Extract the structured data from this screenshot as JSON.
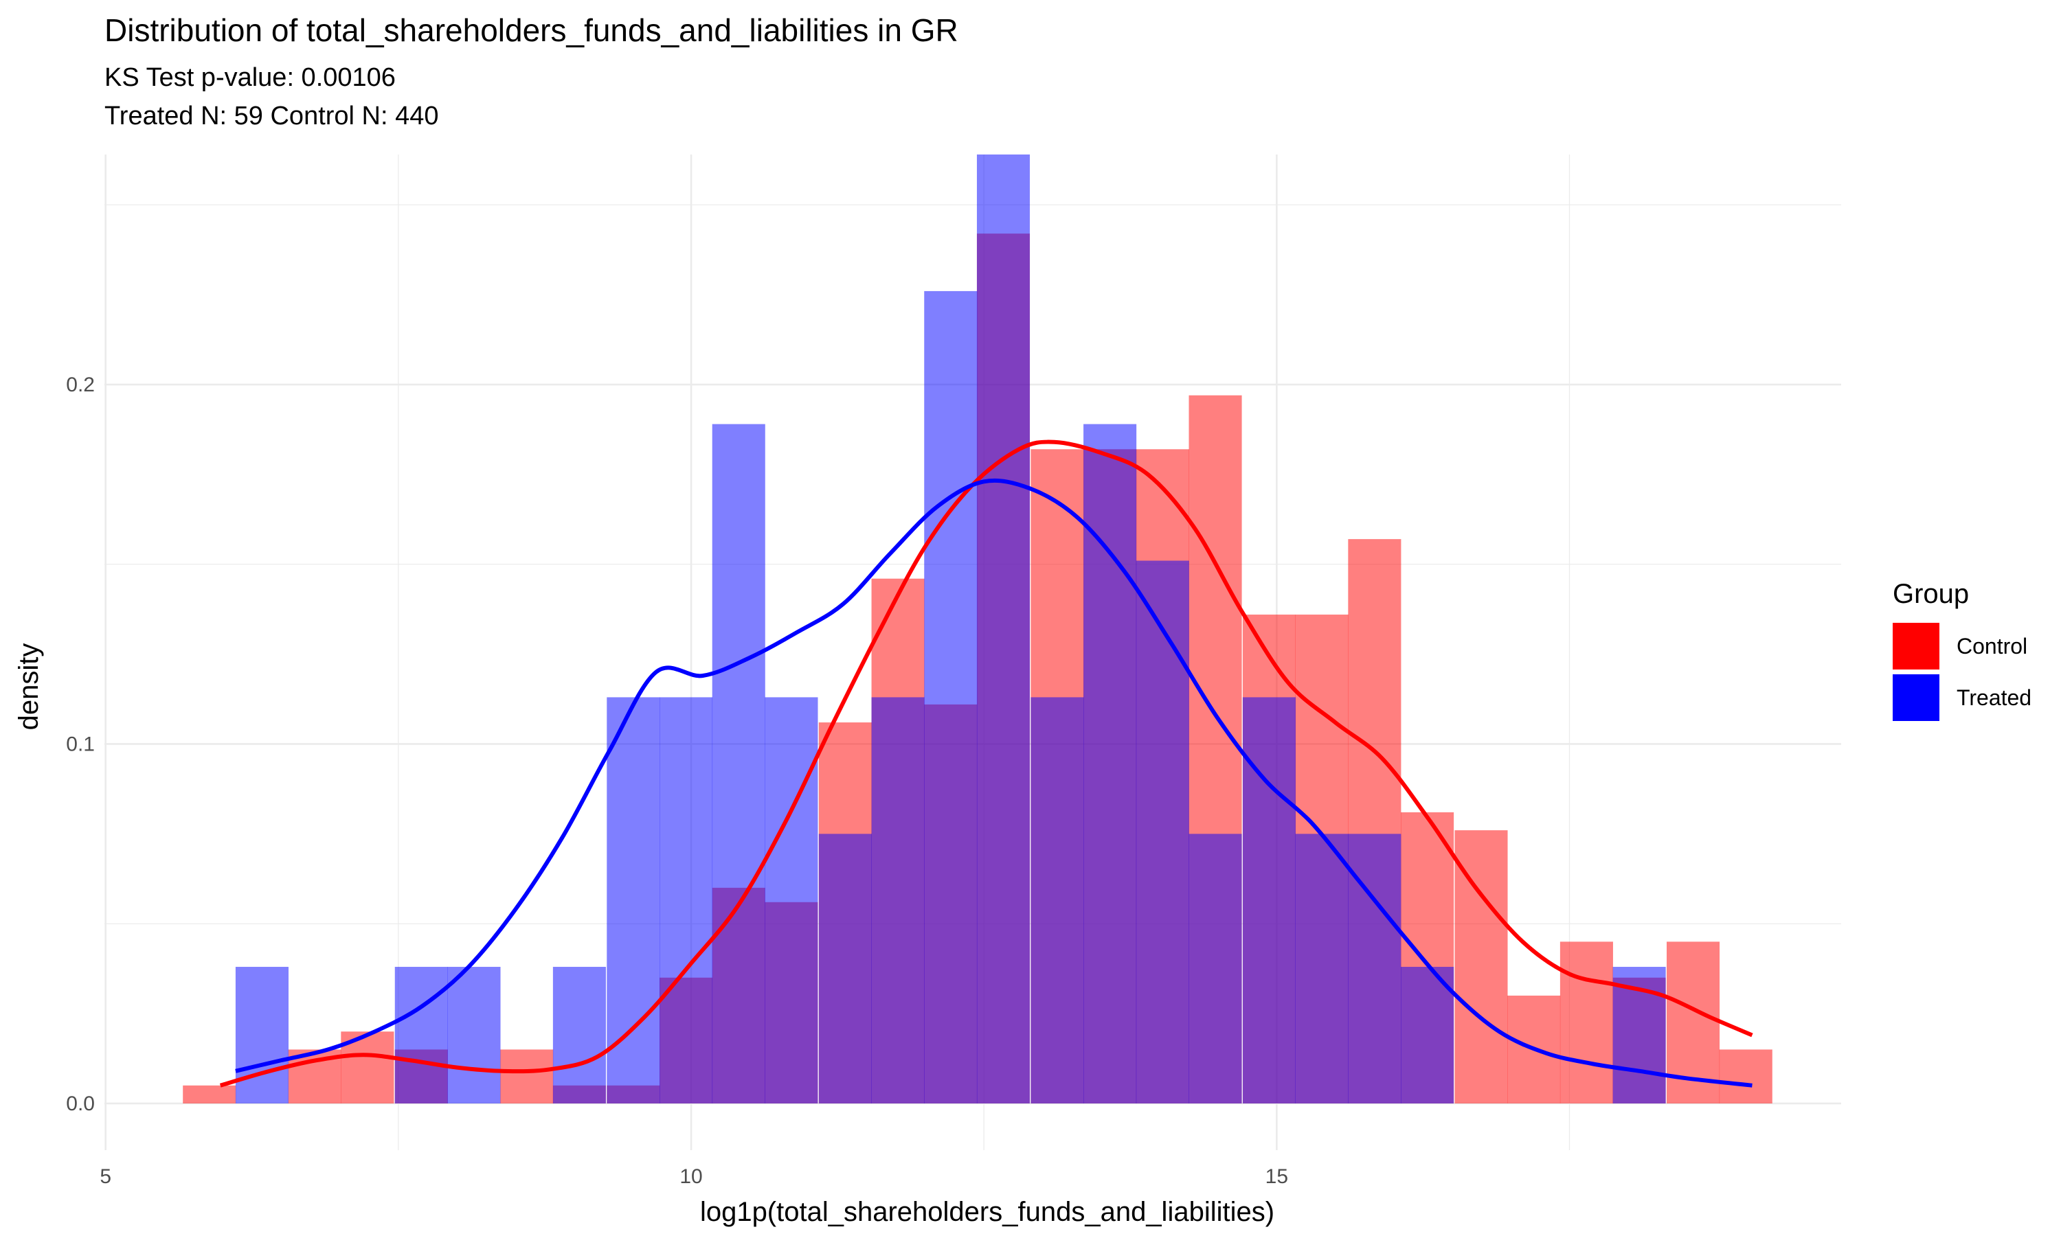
{
  "chart_data": {
    "type": "histogram",
    "title": "Distribution of total_shareholders_funds_and_liabilities in GR",
    "subtitle_lines": [
      "KS Test p-value: 0.00106",
      "Treated N: 59 Control N: 440"
    ],
    "xlabel": "log1p(total_shareholders_funds_and_liabilities)",
    "ylabel": "density",
    "xlim": [
      4.99,
      19.82
    ],
    "ylim": [
      -0.013,
      0.264
    ],
    "x_ticks": [
      5,
      10,
      15
    ],
    "x_minor_ticks": [
      7.5,
      12.5,
      17.5
    ],
    "y_ticks": [
      0.0,
      0.1,
      0.2
    ],
    "y_tick_labels": [
      "0.0",
      "0.1",
      "0.2"
    ],
    "y_minor_ticks": [
      0.05,
      0.15,
      0.25
    ],
    "grid": true,
    "bin_width": 0.4521,
    "legend": {
      "title": "Group",
      "position": "right"
    },
    "series": [
      {
        "name": "Control",
        "color": "#ff0000",
        "bins": [
          {
            "x0": 5.66,
            "y": 0.005
          },
          {
            "x0": 6.11,
            "y": 0.0
          },
          {
            "x0": 6.56,
            "y": 0.015
          },
          {
            "x0": 7.01,
            "y": 0.02
          },
          {
            "x0": 7.47,
            "y": 0.015
          },
          {
            "x0": 7.92,
            "y": 0.0
          },
          {
            "x0": 8.37,
            "y": 0.015
          },
          {
            "x0": 8.82,
            "y": 0.005
          },
          {
            "x0": 9.28,
            "y": 0.005
          },
          {
            "x0": 9.73,
            "y": 0.035
          },
          {
            "x0": 10.18,
            "y": 0.06
          },
          {
            "x0": 10.63,
            "y": 0.056
          },
          {
            "x0": 11.09,
            "y": 0.106
          },
          {
            "x0": 11.54,
            "y": 0.146
          },
          {
            "x0": 11.99,
            "y": 0.111
          },
          {
            "x0": 12.44,
            "y": 0.242
          },
          {
            "x0": 12.9,
            "y": 0.182
          },
          {
            "x0": 13.35,
            "y": 0.182
          },
          {
            "x0": 13.8,
            "y": 0.182
          },
          {
            "x0": 14.25,
            "y": 0.197
          },
          {
            "x0": 14.71,
            "y": 0.136
          },
          {
            "x0": 15.16,
            "y": 0.136
          },
          {
            "x0": 15.61,
            "y": 0.157
          },
          {
            "x0": 16.06,
            "y": 0.081
          },
          {
            "x0": 16.52,
            "y": 0.076
          },
          {
            "x0": 16.97,
            "y": 0.03
          },
          {
            "x0": 17.42,
            "y": 0.045
          },
          {
            "x0": 17.87,
            "y": 0.035
          },
          {
            "x0": 18.33,
            "y": 0.045
          },
          {
            "x0": 18.78,
            "y": 0.015
          }
        ],
        "density": [
          [
            5.98,
            0.005
          ],
          [
            6.4,
            0.009
          ],
          [
            6.8,
            0.012
          ],
          [
            7.2,
            0.0135
          ],
          [
            7.6,
            0.012
          ],
          [
            8.0,
            0.01
          ],
          [
            8.4,
            0.009
          ],
          [
            8.8,
            0.0095
          ],
          [
            9.2,
            0.013
          ],
          [
            9.6,
            0.024
          ],
          [
            10.0,
            0.039
          ],
          [
            10.4,
            0.055
          ],
          [
            10.8,
            0.078
          ],
          [
            11.2,
            0.105
          ],
          [
            11.6,
            0.131
          ],
          [
            12.0,
            0.155
          ],
          [
            12.4,
            0.172
          ],
          [
            12.8,
            0.182
          ],
          [
            13.1,
            0.184
          ],
          [
            13.5,
            0.181
          ],
          [
            13.9,
            0.175
          ],
          [
            14.3,
            0.16
          ],
          [
            14.7,
            0.137
          ],
          [
            15.1,
            0.117
          ],
          [
            15.5,
            0.106
          ],
          [
            15.9,
            0.096
          ],
          [
            16.3,
            0.079
          ],
          [
            16.7,
            0.06
          ],
          [
            17.1,
            0.045
          ],
          [
            17.5,
            0.036
          ],
          [
            17.9,
            0.033
          ],
          [
            18.3,
            0.03
          ],
          [
            18.7,
            0.024
          ],
          [
            19.06,
            0.019
          ]
        ]
      },
      {
        "name": "Treated",
        "color": "#0000ff",
        "bins": [
          {
            "x0": 6.11,
            "y": 0.038
          },
          {
            "x0": 6.56,
            "y": 0.0
          },
          {
            "x0": 7.01,
            "y": 0.0
          },
          {
            "x0": 7.47,
            "y": 0.038
          },
          {
            "x0": 7.92,
            "y": 0.038
          },
          {
            "x0": 8.37,
            "y": 0.0
          },
          {
            "x0": 8.82,
            "y": 0.038
          },
          {
            "x0": 9.28,
            "y": 0.113
          },
          {
            "x0": 9.73,
            "y": 0.113
          },
          {
            "x0": 10.18,
            "y": 0.189
          },
          {
            "x0": 10.63,
            "y": 0.113
          },
          {
            "x0": 11.09,
            "y": 0.075
          },
          {
            "x0": 11.54,
            "y": 0.113
          },
          {
            "x0": 11.99,
            "y": 0.226
          },
          {
            "x0": 12.44,
            "y": 0.264
          },
          {
            "x0": 12.9,
            "y": 0.113
          },
          {
            "x0": 13.35,
            "y": 0.189
          },
          {
            "x0": 13.8,
            "y": 0.151
          },
          {
            "x0": 14.25,
            "y": 0.075
          },
          {
            "x0": 14.71,
            "y": 0.113
          },
          {
            "x0": 15.16,
            "y": 0.075
          },
          {
            "x0": 15.61,
            "y": 0.075
          },
          {
            "x0": 16.06,
            "y": 0.038
          },
          {
            "x0": 16.52,
            "y": 0.0
          },
          {
            "x0": 16.97,
            "y": 0.0
          },
          {
            "x0": 17.42,
            "y": 0.0
          },
          {
            "x0": 17.87,
            "y": 0.038
          }
        ],
        "density": [
          [
            6.11,
            0.009
          ],
          [
            6.5,
            0.012
          ],
          [
            6.9,
            0.015
          ],
          [
            7.3,
            0.02
          ],
          [
            7.7,
            0.027
          ],
          [
            8.1,
            0.038
          ],
          [
            8.5,
            0.054
          ],
          [
            8.9,
            0.074
          ],
          [
            9.3,
            0.098
          ],
          [
            9.7,
            0.12
          ],
          [
            10.1,
            0.119
          ],
          [
            10.5,
            0.124
          ],
          [
            10.9,
            0.131
          ],
          [
            11.3,
            0.139
          ],
          [
            11.7,
            0.153
          ],
          [
            12.1,
            0.166
          ],
          [
            12.5,
            0.173
          ],
          [
            12.9,
            0.171
          ],
          [
            13.3,
            0.163
          ],
          [
            13.7,
            0.148
          ],
          [
            14.1,
            0.128
          ],
          [
            14.5,
            0.107
          ],
          [
            14.9,
            0.09
          ],
          [
            15.3,
            0.078
          ],
          [
            15.7,
            0.062
          ],
          [
            16.1,
            0.046
          ],
          [
            16.5,
            0.031
          ],
          [
            16.9,
            0.02
          ],
          [
            17.3,
            0.014
          ],
          [
            17.7,
            0.011
          ],
          [
            18.1,
            0.009
          ],
          [
            18.5,
            0.007
          ],
          [
            19.06,
            0.005
          ]
        ]
      }
    ]
  }
}
